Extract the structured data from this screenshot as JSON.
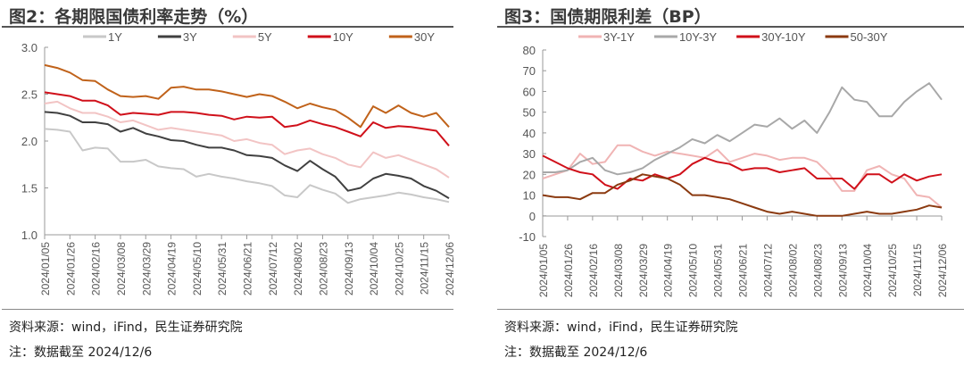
{
  "chart_data": [
    {
      "type": "line",
      "title": "图2：各期限国债利率走势（%）",
      "xlabel": "",
      "ylabel": "",
      "ylim": [
        1.0,
        3.0
      ],
      "yticks": [
        "1.0",
        "1.5",
        "2.0",
        "2.5",
        "3.0"
      ],
      "ytick_values": [
        1.0,
        1.5,
        2.0,
        2.5,
        3.0
      ],
      "xtick_labels": [
        "2024/01/05",
        "2024/01/26",
        "2024/02/16",
        "2024/03/08",
        "2024/03/29",
        "2024/04/19",
        "2024/05/10",
        "2024/05/31",
        "2024/06/21",
        "2024/07/12",
        "2024/08/02",
        "2024/08/23",
        "2024/09/13",
        "2024/10/04",
        "2024/10/25",
        "2024/11/15",
        "2024/12/06"
      ],
      "grid": false,
      "legend": "top",
      "series": [
        {
          "name": "1Y",
          "color": "#c8c8c8",
          "values": [
            2.13,
            2.12,
            2.1,
            1.9,
            1.93,
            1.92,
            1.78,
            1.78,
            1.8,
            1.73,
            1.71,
            1.7,
            1.62,
            1.65,
            1.62,
            1.6,
            1.57,
            1.55,
            1.52,
            1.42,
            1.4,
            1.53,
            1.48,
            1.44,
            1.34,
            1.38,
            1.4,
            1.42,
            1.45,
            1.43,
            1.4,
            1.38,
            1.35
          ]
        },
        {
          "name": "3Y",
          "color": "#404040",
          "values": [
            2.31,
            2.3,
            2.27,
            2.2,
            2.2,
            2.18,
            2.1,
            2.14,
            2.08,
            2.05,
            2.01,
            2.0,
            1.96,
            1.93,
            1.93,
            1.9,
            1.85,
            1.84,
            1.82,
            1.74,
            1.68,
            1.79,
            1.7,
            1.62,
            1.47,
            1.5,
            1.6,
            1.65,
            1.63,
            1.6,
            1.52,
            1.47,
            1.39
          ]
        },
        {
          "name": "5Y",
          "color": "#f2c4c4",
          "values": [
            2.4,
            2.42,
            2.35,
            2.3,
            2.3,
            2.26,
            2.2,
            2.22,
            2.17,
            2.12,
            2.14,
            2.12,
            2.1,
            2.08,
            2.06,
            2.0,
            2.02,
            1.98,
            1.96,
            1.86,
            1.9,
            1.92,
            1.86,
            1.82,
            1.75,
            1.72,
            1.88,
            1.82,
            1.85,
            1.8,
            1.75,
            1.7,
            1.61
          ]
        },
        {
          "name": "10Y",
          "color": "#d0101a",
          "values": [
            2.52,
            2.5,
            2.48,
            2.43,
            2.43,
            2.38,
            2.28,
            2.3,
            2.29,
            2.28,
            2.31,
            2.31,
            2.3,
            2.28,
            2.27,
            2.23,
            2.26,
            2.25,
            2.26,
            2.15,
            2.17,
            2.22,
            2.18,
            2.15,
            2.1,
            2.05,
            2.2,
            2.14,
            2.16,
            2.15,
            2.13,
            2.11,
            1.95
          ]
        },
        {
          "name": "30Y",
          "color": "#c0621a",
          "values": [
            2.81,
            2.78,
            2.73,
            2.65,
            2.64,
            2.55,
            2.48,
            2.47,
            2.48,
            2.45,
            2.57,
            2.58,
            2.55,
            2.55,
            2.53,
            2.5,
            2.47,
            2.5,
            2.48,
            2.42,
            2.35,
            2.4,
            2.36,
            2.33,
            2.25,
            2.15,
            2.37,
            2.3,
            2.38,
            2.3,
            2.26,
            2.3,
            2.15
          ]
        }
      ]
    },
    {
      "type": "line",
      "title": "图3：国债期限利差（BP）",
      "xlabel": "",
      "ylabel": "",
      "ylim": [
        -10,
        80
      ],
      "yticks": [
        "-10",
        "0",
        "10",
        "20",
        "30",
        "40",
        "50",
        "60",
        "70",
        "80"
      ],
      "ytick_values": [
        -10,
        0,
        10,
        20,
        30,
        40,
        50,
        60,
        70,
        80
      ],
      "xtick_labels": [
        "2024/01/05",
        "2024/01/26",
        "2024/02/16",
        "2024/03/08",
        "2024/03/29",
        "2024/04/19",
        "2024/05/10",
        "2024/05/31",
        "2024/06/21",
        "2024/07/12",
        "2024/08/02",
        "2024/08/23",
        "2024/09/13",
        "2024/10/04",
        "2024/10/25",
        "2024/11/15",
        "2024/12/06"
      ],
      "grid": false,
      "legend": "top",
      "series": [
        {
          "name": "3Y-1Y",
          "color": "#f0b4b4",
          "values": [
            18,
            20,
            22,
            30,
            25,
            26,
            34,
            34,
            31,
            29,
            31,
            30,
            29,
            28,
            32,
            26,
            28,
            30,
            29,
            27,
            28,
            28,
            26,
            20,
            12,
            12,
            22,
            24,
            20,
            18,
            10,
            9,
            4
          ]
        },
        {
          "name": "10Y-3Y",
          "color": "#a8a8a8",
          "values": [
            21,
            21,
            22,
            26,
            28,
            22,
            20,
            21,
            23,
            27,
            30,
            33,
            37,
            35,
            39,
            36,
            40,
            44,
            43,
            47,
            42,
            46,
            40,
            50,
            62,
            56,
            55,
            48,
            48,
            55,
            60,
            64,
            56
          ]
        },
        {
          "name": "30Y-10Y",
          "color": "#d0101a",
          "values": [
            29,
            26,
            23,
            21,
            20,
            15,
            13,
            18,
            17,
            20,
            18,
            20,
            25,
            28,
            26,
            25,
            22,
            23,
            23,
            21,
            22,
            23,
            18,
            18,
            18,
            13,
            20,
            20,
            16,
            20,
            17,
            19,
            20
          ]
        },
        {
          "name": "50-30Y",
          "color": "#8b3a10",
          "values": [
            10,
            9,
            9,
            8,
            11,
            11,
            15,
            17,
            20,
            19,
            18,
            15,
            10,
            10,
            9,
            8,
            6,
            4,
            2,
            1,
            2,
            1,
            0,
            0,
            0,
            1,
            2,
            1,
            1,
            2,
            3,
            5,
            4
          ]
        }
      ]
    }
  ],
  "footer": {
    "left_source": "资料来源：wind，iFind，民生证券研究院",
    "left_note": "注：数据截至 2024/12/6",
    "right_source": "资料来源：wind，iFind，民生证券研究院",
    "right_note": "注：数据截至 2024/12/6"
  }
}
